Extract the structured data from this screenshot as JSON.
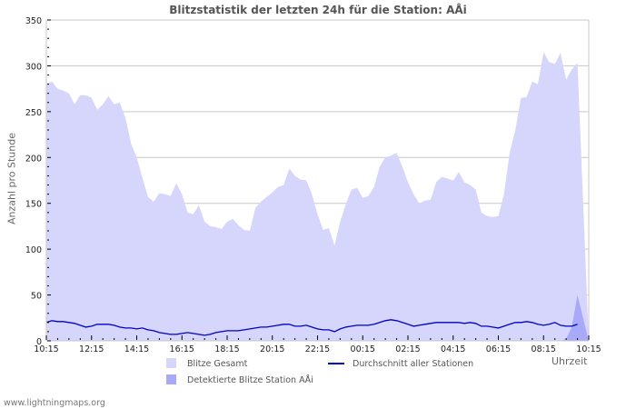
{
  "chart_data": {
    "type": "area",
    "title": "Blitzstatistik der letzten 24h für die Station: AÅi",
    "xlabel": "Uhrzeit",
    "ylabel": "Anzahl pro Stunde",
    "ylim": [
      0,
      350
    ],
    "yticks": [
      0,
      50,
      100,
      150,
      200,
      250,
      300,
      350
    ],
    "xticks": [
      "10:15",
      "12:15",
      "14:15",
      "16:15",
      "18:15",
      "20:15",
      "22:15",
      "00:15",
      "02:15",
      "04:15",
      "06:15",
      "08:15",
      "10:15"
    ],
    "grid": true,
    "legend_position": "bottom",
    "x_hours": [
      0,
      0.25,
      0.5,
      0.75,
      1,
      1.25,
      1.5,
      1.75,
      2,
      2.25,
      2.5,
      2.75,
      3,
      3.25,
      3.5,
      3.75,
      4,
      4.25,
      4.5,
      4.75,
      5,
      5.25,
      5.5,
      5.75,
      6,
      6.25,
      6.5,
      6.75,
      7,
      7.25,
      7.5,
      7.75,
      8,
      8.25,
      8.5,
      8.75,
      9,
      9.25,
      9.5,
      9.75,
      10,
      10.25,
      10.5,
      10.75,
      11,
      11.25,
      11.5,
      11.75,
      12,
      12.25,
      12.5,
      12.75,
      13,
      13.25,
      13.5,
      13.75,
      14,
      14.25,
      14.5,
      14.75,
      15,
      15.25,
      15.5,
      15.75,
      16,
      16.25,
      16.5,
      16.75,
      17,
      17.25,
      17.5,
      17.75,
      18,
      18.25,
      18.5,
      18.75,
      19,
      19.25,
      19.5,
      19.75,
      20,
      20.25,
      20.5,
      20.75,
      21,
      21.25,
      21.5,
      21.75,
      22,
      22.25,
      22.5,
      22.75,
      23,
      23.25,
      23.5,
      23.75,
      24
    ],
    "series": [
      {
        "name": "Blitze Gesamt",
        "color": "#d6d6fc",
        "values": [
          280,
          283,
          275,
          273,
          270,
          258,
          268,
          268,
          265,
          252,
          258,
          267,
          258,
          260,
          243,
          215,
          200,
          178,
          157,
          152,
          161,
          160,
          158,
          172,
          160,
          140,
          138,
          148,
          130,
          125,
          124,
          122,
          130,
          133,
          126,
          121,
          120,
          145,
          152,
          157,
          162,
          168,
          170,
          188,
          180,
          176,
          175,
          160,
          138,
          121,
          123,
          104,
          130,
          149,
          165,
          167,
          156,
          158,
          168,
          190,
          200,
          202,
          205,
          190,
          173,
          160,
          150,
          153,
          154,
          173,
          179,
          177,
          175,
          184,
          173,
          170,
          165,
          140,
          136,
          135,
          136,
          160,
          205,
          230,
          265,
          266,
          283,
          280,
          315,
          304,
          302,
          314,
          285,
          296,
          303
        ]
      },
      {
        "name": "Durchschnitt aller Stationen",
        "color": "#0000cc",
        "values": [
          20,
          22,
          21,
          21,
          20,
          19,
          17,
          15,
          16,
          18,
          18,
          18,
          17,
          15,
          14,
          14,
          13,
          14,
          12,
          11,
          9,
          8,
          7,
          7,
          8,
          9,
          8,
          7,
          6,
          7,
          9,
          10,
          11,
          11,
          11,
          12,
          13,
          14,
          15,
          15,
          16,
          17,
          18,
          18,
          16,
          16,
          17,
          15,
          13,
          12,
          12,
          10,
          13,
          15,
          16,
          17,
          17,
          17,
          18,
          20,
          22,
          23,
          22,
          20,
          18,
          16,
          17,
          18,
          19,
          20,
          20,
          20,
          20,
          20,
          19,
          20,
          19,
          16,
          16,
          15,
          14,
          16,
          18,
          20,
          20,
          21,
          20,
          18,
          17,
          18,
          20,
          17,
          16,
          16,
          18
        ]
      },
      {
        "name": "Detektierte Blitze Station AÅi",
        "color": "#a9a9fa",
        "values": [
          0,
          0,
          0,
          0,
          0,
          0,
          0,
          0,
          0,
          0,
          0,
          0,
          0,
          0,
          0,
          0,
          0,
          0,
          0,
          0,
          0,
          0,
          0,
          0,
          0,
          0,
          0,
          0,
          0,
          0,
          0,
          0,
          0,
          0,
          0,
          0,
          0,
          0,
          0,
          0,
          0,
          0,
          0,
          0,
          0,
          0,
          0,
          0,
          0,
          0,
          0,
          0,
          0,
          0,
          0,
          0,
          0,
          0,
          0,
          0,
          0,
          0,
          0,
          0,
          0,
          0,
          0,
          0,
          0,
          0,
          0,
          0,
          0,
          0,
          0,
          0,
          0,
          0,
          0,
          0,
          0,
          0,
          0,
          0,
          0,
          0,
          0,
          0,
          0,
          0,
          0,
          0,
          2,
          15,
          50
        ]
      }
    ]
  },
  "title": "Blitzstatistik der letzten 24h für die Station: AÅi",
  "ylabel": "Anzahl pro Stunde",
  "xunit": "Uhrzeit",
  "legend": {
    "total": "Blitze Gesamt",
    "avg": "Durchschnitt aller Stationen",
    "station": "Detektierte Blitze Station AÅi"
  },
  "footer": "www.lightningmaps.org"
}
